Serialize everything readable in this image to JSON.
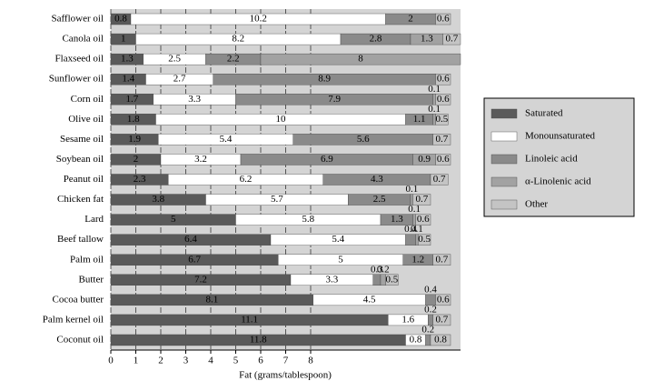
{
  "chart_data": {
    "type": "stacked-bar-horizontal",
    "xlabel": "Fat (grams/tablespoon)",
    "categories": [
      "Safflower oil",
      "Canola oil",
      "Flaxseed oil",
      "Sunflower oil",
      "Corn oil",
      "Olive oil",
      "Sesame oil",
      "Soybean oil",
      "Peanut oil",
      "Chicken fat",
      "Lard",
      "Beef tallow",
      "Palm oil",
      "Butter",
      "Cocoa butter",
      "Palm kernel oil",
      "Coconut oil"
    ],
    "series": [
      {
        "name": "Saturated",
        "color": "#5a5a5a",
        "values": [
          0.8,
          1.0,
          1.3,
          1.4,
          1.7,
          1.8,
          1.9,
          2.0,
          2.3,
          3.8,
          5.0,
          6.4,
          6.7,
          7.2,
          8.1,
          11.1,
          11.8
        ]
      },
      {
        "name": "Monounsaturated",
        "color": "#ffffff",
        "values": [
          10.2,
          8.2,
          2.5,
          2.7,
          3.3,
          10.0,
          5.4,
          3.2,
          6.2,
          5.7,
          5.8,
          5.4,
          5.0,
          3.3,
          4.5,
          1.6,
          0.8
        ]
      },
      {
        "name": "Linoleic acid",
        "color": "#8a8a8a",
        "values": [
          2.0,
          2.8,
          2.2,
          8.9,
          7.9,
          1.1,
          5.6,
          6.9,
          4.3,
          2.5,
          1.3,
          0.4,
          1.2,
          0.3,
          0.4,
          0.2,
          0.2
        ]
      },
      {
        "name": "α-Linolenic acid",
        "color": "#a2a2a2",
        "values": [
          null,
          1.3,
          8.0,
          null,
          0.1,
          0.1,
          null,
          0.9,
          null,
          0.1,
          0.1,
          0.1,
          null,
          0.2,
          null,
          null,
          null
        ]
      },
      {
        "name": "Other",
        "color": "#c4c4c4",
        "values": [
          0.6,
          0.7,
          null,
          0.6,
          0.6,
          0.5,
          0.7,
          0.6,
          0.7,
          0.7,
          0.6,
          0.5,
          0.7,
          0.5,
          0.6,
          0.7,
          0.8
        ]
      }
    ],
    "xlim": [
      0,
      14
    ],
    "xticks": [
      0,
      1,
      2,
      3,
      4,
      5,
      6,
      7,
      8
    ],
    "grid": true
  }
}
